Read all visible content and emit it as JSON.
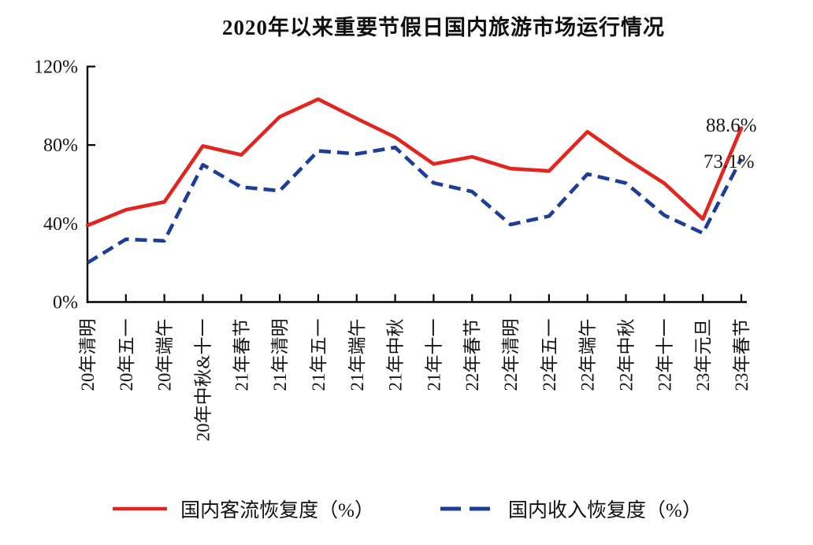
{
  "title": "2020年以来重要节假日国内旅游市场运行情况",
  "chart_data": {
    "type": "line",
    "title": "2020年以来重要节假日国内旅游市场运行情况",
    "categories": [
      "20年清明",
      "20年五一",
      "20年端午",
      "20年中秋&十一",
      "21年春节",
      "21年清明",
      "21年五一",
      "21年端午",
      "21年中秋",
      "21年十一",
      "22年春节",
      "22年清明",
      "22年五一",
      "22年端午",
      "22年中秋",
      "22年十一",
      "23年元旦",
      "23年春节"
    ],
    "series": [
      {
        "name": "国内客流恢复度（%）",
        "color": "#e2261f",
        "style": "solid",
        "values": [
          39.0,
          47.0,
          51.0,
          79.5,
          75.0,
          94.4,
          103.4,
          93.5,
          84.0,
          70.3,
          74.0,
          68.0,
          66.8,
          86.8,
          73.0,
          60.5,
          42.3,
          88.6
        ]
      },
      {
        "name": "国内收入恢复度（%）",
        "color": "#1e3d96",
        "style": "dashed",
        "values": [
          20.0,
          32.0,
          31.2,
          69.9,
          58.6,
          56.7,
          77.0,
          75.5,
          78.8,
          60.7,
          56.3,
          39.5,
          43.8,
          65.2,
          60.6,
          44.2,
          35.1,
          73.1
        ]
      }
    ],
    "ylim": [
      0,
      120
    ],
    "yticks": [
      {
        "value": 0,
        "label": "0%"
      },
      {
        "value": 40,
        "label": "40%"
      },
      {
        "value": 80,
        "label": "80%"
      },
      {
        "value": 120,
        "label": "120%"
      }
    ],
    "grid": false,
    "legend_position": "bottom",
    "xlabel": "",
    "ylabel": ""
  },
  "legend": {
    "passenger_label": "国内客流恢复度（%）",
    "revenue_label": "国内收入恢复度（%）"
  },
  "annotations": {
    "passenger_end": "88.6%",
    "revenue_end": "73.1%"
  }
}
